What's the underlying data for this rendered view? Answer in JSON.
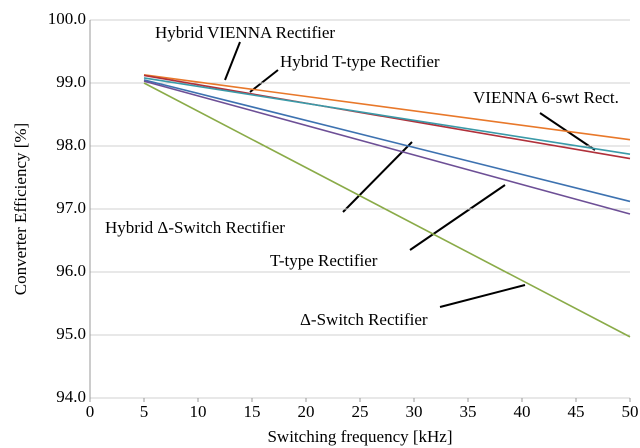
{
  "chart_data": {
    "type": "line",
    "x_label": "Switching frequency [kHz]",
    "y_label": "Converter Efficiency [%]",
    "x": [
      5,
      50
    ],
    "series": [
      {
        "name": "Hybrid VIENNA Rectifier",
        "color": "#e8782a",
        "values": [
          99.13,
          98.1
        ]
      },
      {
        "name": "Hybrid T-type Rectifier",
        "color": "#b0303a",
        "values": [
          99.12,
          97.8
        ]
      },
      {
        "name": "VIENNA 6-swt Rect.",
        "color": "#3a9aa8",
        "values": [
          99.08,
          97.87
        ]
      },
      {
        "name": "Hybrid Δ-Switch Rectifier",
        "color": "#3d72b0",
        "values": [
          99.05,
          97.12
        ]
      },
      {
        "name": "T-type Rectifier",
        "color": "#6d4f96",
        "values": [
          99.03,
          96.92
        ]
      },
      {
        "name": "Δ-Switch Rectifier",
        "color": "#8aab48",
        "values": [
          99.0,
          94.97
        ]
      }
    ],
    "xlim": [
      0,
      50
    ],
    "xticks": [
      0,
      5,
      10,
      15,
      20,
      25,
      30,
      35,
      40,
      45,
      50
    ],
    "ylim": [
      94,
      100
    ],
    "yticks": [
      {
        "value": 94,
        "label": "94.0"
      },
      {
        "value": 95,
        "label": "95.0"
      },
      {
        "value": 96,
        "label": "96.0"
      },
      {
        "value": 97,
        "label": "97.0"
      },
      {
        "value": 98,
        "label": "98.0"
      },
      {
        "value": 99,
        "label": "99.0"
      },
      {
        "value": 100,
        "label": "100.0"
      }
    ],
    "grid": true
  }
}
